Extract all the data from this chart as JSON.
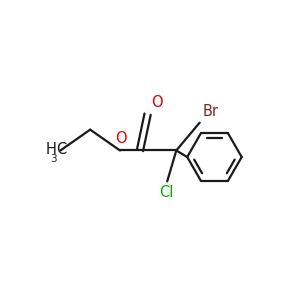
{
  "background_color": "#ffffff",
  "bond_color": "#1a1a1a",
  "o_color": "#dd0000",
  "br_color": "#7a2525",
  "cl_color": "#00aa00",
  "line_width": 1.6,
  "font_size": 10.5,
  "sub_font_size": 7.5,
  "figsize": [
    3.0,
    3.0
  ],
  "dpi": 100,
  "xlim": [
    -1.5,
    1.55
  ],
  "ylim": [
    -1.0,
    0.85
  ]
}
